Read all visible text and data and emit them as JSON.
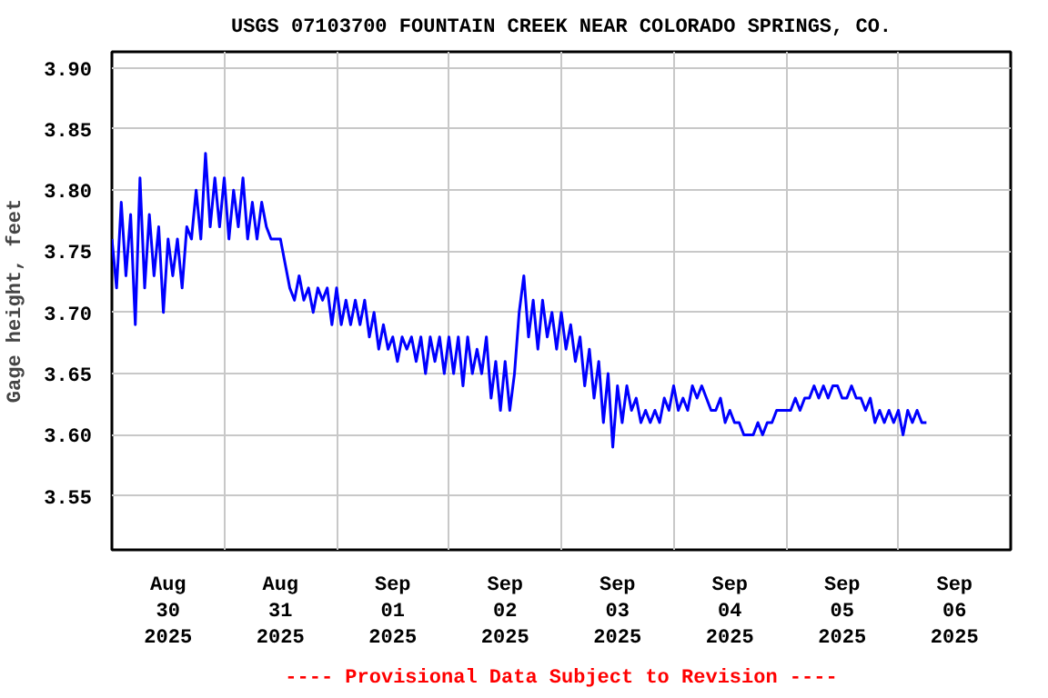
{
  "chart_data": {
    "type": "line",
    "title": "USGS 07103700 FOUNTAIN CREEK NEAR COLORADO SPRINGS, CO.",
    "ylabel": "Gage height, feet",
    "annotations": [
      "---- Provisional Data Subject to Revision ----"
    ],
    "xlim": [
      "2025-08-30T00:00",
      "2025-09-07T00:00"
    ],
    "ylim": [
      3.506,
      3.913
    ],
    "xticks": [
      {
        "value": "2025-08-30T12:00",
        "label": "Aug\n30\n2025"
      },
      {
        "value": "2025-08-31T12:00",
        "label": "Aug\n31\n2025"
      },
      {
        "value": "2025-09-01T12:00",
        "label": "Sep\n01\n2025"
      },
      {
        "value": "2025-09-02T12:00",
        "label": "Sep\n02\n2025"
      },
      {
        "value": "2025-09-03T12:00",
        "label": "Sep\n03\n2025"
      },
      {
        "value": "2025-09-04T12:00",
        "label": "Sep\n04\n2025"
      },
      {
        "value": "2025-09-05T12:00",
        "label": "Sep\n05\n2025"
      },
      {
        "value": "2025-09-06T12:00",
        "label": "Sep\n06\n2025"
      },
      {
        "value": "2025-08-31T00:00",
        "label": null
      },
      {
        "value": "2025-09-01T00:00",
        "label": null
      },
      {
        "value": "2025-09-02T00:00",
        "label": null
      },
      {
        "value": "2025-09-03T00:00",
        "label": null
      },
      {
        "value": "2025-09-04T00:00",
        "label": null
      },
      {
        "value": "2025-09-05T00:00",
        "label": null
      },
      {
        "value": "2025-09-06T00:00",
        "label": null
      }
    ],
    "yticks": [
      {
        "value": 3.55,
        "label": "3.55"
      },
      {
        "value": 3.6,
        "label": "3.60"
      },
      {
        "value": 3.65,
        "label": "3.65"
      },
      {
        "value": 3.7,
        "label": "3.70"
      },
      {
        "value": 3.75,
        "label": "3.75"
      },
      {
        "value": 3.8,
        "label": "3.80"
      },
      {
        "value": 3.85,
        "label": "3.85"
      },
      {
        "value": 3.9,
        "label": "3.90"
      }
    ],
    "grid": true,
    "series": [
      {
        "color": "#0000ff",
        "x": [
          "2025-08-30T00:00",
          "2025-08-30T01:00",
          "2025-08-30T02:00",
          "2025-08-30T03:00",
          "2025-08-30T04:00",
          "2025-08-30T05:00",
          "2025-08-30T06:00",
          "2025-08-30T07:00",
          "2025-08-30T08:00",
          "2025-08-30T09:00",
          "2025-08-30T10:00",
          "2025-08-30T11:00",
          "2025-08-30T12:00",
          "2025-08-30T13:00",
          "2025-08-30T14:00",
          "2025-08-30T15:00",
          "2025-08-30T16:00",
          "2025-08-30T17:00",
          "2025-08-30T18:00",
          "2025-08-30T19:00",
          "2025-08-30T20:00",
          "2025-08-30T21:00",
          "2025-08-30T22:00",
          "2025-08-30T23:00",
          "2025-08-31T00:00",
          "2025-08-31T01:00",
          "2025-08-31T02:00",
          "2025-08-31T03:00",
          "2025-08-31T04:00",
          "2025-08-31T05:00",
          "2025-08-31T06:00",
          "2025-08-31T07:00",
          "2025-08-31T08:00",
          "2025-08-31T09:00",
          "2025-08-31T10:00",
          "2025-08-31T11:00",
          "2025-08-31T12:00",
          "2025-08-31T13:00",
          "2025-08-31T14:00",
          "2025-08-31T15:00",
          "2025-08-31T16:00",
          "2025-08-31T17:00",
          "2025-08-31T18:00",
          "2025-08-31T19:00",
          "2025-08-31T20:00",
          "2025-08-31T21:00",
          "2025-08-31T22:00",
          "2025-08-31T23:00",
          "2025-09-01T00:00",
          "2025-09-01T01:00",
          "2025-09-01T02:00",
          "2025-09-01T03:00",
          "2025-09-01T04:00",
          "2025-09-01T05:00",
          "2025-09-01T06:00",
          "2025-09-01T07:00",
          "2025-09-01T08:00",
          "2025-09-01T09:00",
          "2025-09-01T10:00",
          "2025-09-01T11:00",
          "2025-09-01T12:00",
          "2025-09-01T13:00",
          "2025-09-01T14:00",
          "2025-09-01T15:00",
          "2025-09-01T16:00",
          "2025-09-01T17:00",
          "2025-09-01T18:00",
          "2025-09-01T19:00",
          "2025-09-01T20:00",
          "2025-09-01T21:00",
          "2025-09-01T22:00",
          "2025-09-01T23:00",
          "2025-09-02T00:00",
          "2025-09-02T01:00",
          "2025-09-02T02:00",
          "2025-09-02T03:00",
          "2025-09-02T04:00",
          "2025-09-02T05:00",
          "2025-09-02T06:00",
          "2025-09-02T07:00",
          "2025-09-02T08:00",
          "2025-09-02T09:00",
          "2025-09-02T10:00",
          "2025-09-02T11:00",
          "2025-09-02T12:00",
          "2025-09-02T13:00",
          "2025-09-02T14:00",
          "2025-09-02T15:00",
          "2025-09-02T16:00",
          "2025-09-02T17:00",
          "2025-09-02T18:00",
          "2025-09-02T19:00",
          "2025-09-02T20:00",
          "2025-09-02T21:00",
          "2025-09-02T22:00",
          "2025-09-02T23:00",
          "2025-09-03T00:00",
          "2025-09-03T01:00",
          "2025-09-03T02:00",
          "2025-09-03T03:00",
          "2025-09-03T04:00",
          "2025-09-03T05:00",
          "2025-09-03T06:00",
          "2025-09-03T07:00",
          "2025-09-03T08:00",
          "2025-09-03T09:00",
          "2025-09-03T10:00",
          "2025-09-03T11:00",
          "2025-09-03T12:00",
          "2025-09-03T13:00",
          "2025-09-03T14:00",
          "2025-09-03T15:00",
          "2025-09-03T16:00",
          "2025-09-03T17:00",
          "2025-09-03T18:00",
          "2025-09-03T19:00",
          "2025-09-03T20:00",
          "2025-09-03T21:00",
          "2025-09-03T22:00",
          "2025-09-03T23:00",
          "2025-09-04T00:00",
          "2025-09-04T01:00",
          "2025-09-04T02:00",
          "2025-09-04T03:00",
          "2025-09-04T04:00",
          "2025-09-04T05:00",
          "2025-09-04T06:00",
          "2025-09-04T07:00",
          "2025-09-04T08:00",
          "2025-09-04T09:00",
          "2025-09-04T10:00",
          "2025-09-04T11:00",
          "2025-09-04T12:00",
          "2025-09-04T13:00",
          "2025-09-04T14:00",
          "2025-09-04T15:00",
          "2025-09-04T16:00",
          "2025-09-04T17:00",
          "2025-09-04T18:00",
          "2025-09-04T19:00",
          "2025-09-04T20:00",
          "2025-09-04T21:00",
          "2025-09-04T22:00",
          "2025-09-04T23:00",
          "2025-09-05T00:00",
          "2025-09-05T01:00",
          "2025-09-05T02:00",
          "2025-09-05T03:00",
          "2025-09-05T04:00",
          "2025-09-05T05:00",
          "2025-09-05T06:00",
          "2025-09-05T07:00",
          "2025-09-05T08:00",
          "2025-09-05T09:00",
          "2025-09-05T10:00",
          "2025-09-05T11:00",
          "2025-09-05T12:00",
          "2025-09-05T13:00",
          "2025-09-05T14:00",
          "2025-09-05T15:00",
          "2025-09-05T16:00",
          "2025-09-05T17:00",
          "2025-09-05T18:00",
          "2025-09-05T19:00",
          "2025-09-05T20:00",
          "2025-09-05T21:00",
          "2025-09-05T22:00",
          "2025-09-05T23:00",
          "2025-09-06T00:00",
          "2025-09-06T01:00",
          "2025-09-06T02:00",
          "2025-09-06T03:00",
          "2025-09-06T04:00",
          "2025-09-06T05:00",
          "2025-09-06T06:00"
        ],
        "values": [
          3.76,
          3.72,
          3.79,
          3.73,
          3.78,
          3.69,
          3.81,
          3.72,
          3.78,
          3.73,
          3.77,
          3.7,
          3.76,
          3.73,
          3.76,
          3.72,
          3.77,
          3.76,
          3.8,
          3.76,
          3.83,
          3.77,
          3.81,
          3.77,
          3.81,
          3.76,
          3.8,
          3.77,
          3.81,
          3.76,
          3.79,
          3.76,
          3.79,
          3.77,
          3.76,
          3.76,
          3.76,
          3.74,
          3.72,
          3.71,
          3.73,
          3.71,
          3.72,
          3.7,
          3.72,
          3.71,
          3.72,
          3.69,
          3.72,
          3.69,
          3.71,
          3.69,
          3.71,
          3.69,
          3.71,
          3.68,
          3.7,
          3.67,
          3.69,
          3.67,
          3.68,
          3.66,
          3.68,
          3.67,
          3.68,
          3.66,
          3.68,
          3.65,
          3.68,
          3.66,
          3.68,
          3.65,
          3.68,
          3.65,
          3.68,
          3.64,
          3.68,
          3.65,
          3.67,
          3.65,
          3.68,
          3.63,
          3.66,
          3.62,
          3.66,
          3.62,
          3.65,
          3.7,
          3.73,
          3.68,
          3.71,
          3.67,
          3.71,
          3.68,
          3.7,
          3.67,
          3.7,
          3.67,
          3.69,
          3.66,
          3.68,
          3.64,
          3.67,
          3.63,
          3.66,
          3.61,
          3.65,
          3.59,
          3.64,
          3.61,
          3.64,
          3.62,
          3.63,
          3.61,
          3.62,
          3.61,
          3.62,
          3.61,
          3.63,
          3.62,
          3.64,
          3.62,
          3.63,
          3.62,
          3.64,
          3.63,
          3.64,
          3.63,
          3.62,
          3.62,
          3.63,
          3.61,
          3.62,
          3.61,
          3.61,
          3.6,
          3.6,
          3.6,
          3.61,
          3.6,
          3.61,
          3.61,
          3.62,
          3.62,
          3.62,
          3.62,
          3.63,
          3.62,
          3.63,
          3.63,
          3.64,
          3.63,
          3.64,
          3.63,
          3.64,
          3.64,
          3.63,
          3.63,
          3.64,
          3.63,
          3.63,
          3.62,
          3.63,
          3.61,
          3.62,
          3.61,
          3.62,
          3.61,
          3.62,
          3.6,
          3.62,
          3.61,
          3.62,
          3.61,
          3.61
        ]
      }
    ]
  }
}
